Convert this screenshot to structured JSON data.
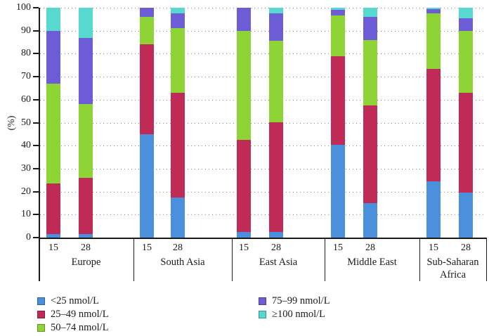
{
  "chart_data": {
    "type": "bar",
    "stacked": true,
    "title": "",
    "xlabel": "",
    "ylabel": "(%)",
    "ylim": [
      0,
      100
    ],
    "yticks": [
      0,
      10,
      20,
      30,
      40,
      50,
      60,
      70,
      80,
      90,
      100
    ],
    "grid": "horizontal-dotted",
    "legend_position": "bottom",
    "bar_time_labels": [
      "15",
      "28"
    ],
    "series": [
      {
        "name": "<25 nmol/L",
        "color": "#4a90dc"
      },
      {
        "name": "25–49 nmol/L",
        "color": "#c02a56"
      },
      {
        "name": "50–74 nmol/L",
        "color": "#8ed434"
      },
      {
        "name": "75–99 nmol/L",
        "color": "#6c5cd6"
      },
      {
        "name": "≥100 nmol/L",
        "color": "#58d9cf"
      }
    ],
    "groups": [
      {
        "label": "Europe",
        "bars": [
          {
            "label": "15",
            "values": [
              1.5,
              22,
              43.5,
              23,
              10
            ]
          },
          {
            "label": "28",
            "values": [
              1.5,
              24.5,
              32,
              29,
              13
            ]
          }
        ]
      },
      {
        "label": "South Asia",
        "bars": [
          {
            "label": "15",
            "values": [
              45,
              39,
              12,
              4,
              0
            ]
          },
          {
            "label": "28",
            "values": [
              17.5,
              45.5,
              28,
              6.5,
              2.5
            ]
          }
        ]
      },
      {
        "label": "East Asia",
        "bars": [
          {
            "label": "15",
            "values": [
              2.5,
              40,
              47.5,
              10,
              0
            ]
          },
          {
            "label": "28",
            "values": [
              2.5,
              47.5,
              35.5,
              12,
              2.5
            ]
          }
        ]
      },
      {
        "label": "Middle East",
        "bars": [
          {
            "label": "15",
            "values": [
              40.5,
              38.5,
              17.5,
              2.5,
              1
            ]
          },
          {
            "label": "28",
            "values": [
              15,
              42.5,
              28.5,
              10,
              4
            ]
          }
        ]
      },
      {
        "label": "Sub-Saharan Africa",
        "bars": [
          {
            "label": "15",
            "values": [
              24.5,
              49,
              24,
              2,
              0.5
            ]
          },
          {
            "label": "28",
            "values": [
              19.5,
              43.5,
              27,
              5.5,
              4.5
            ]
          }
        ]
      }
    ]
  }
}
